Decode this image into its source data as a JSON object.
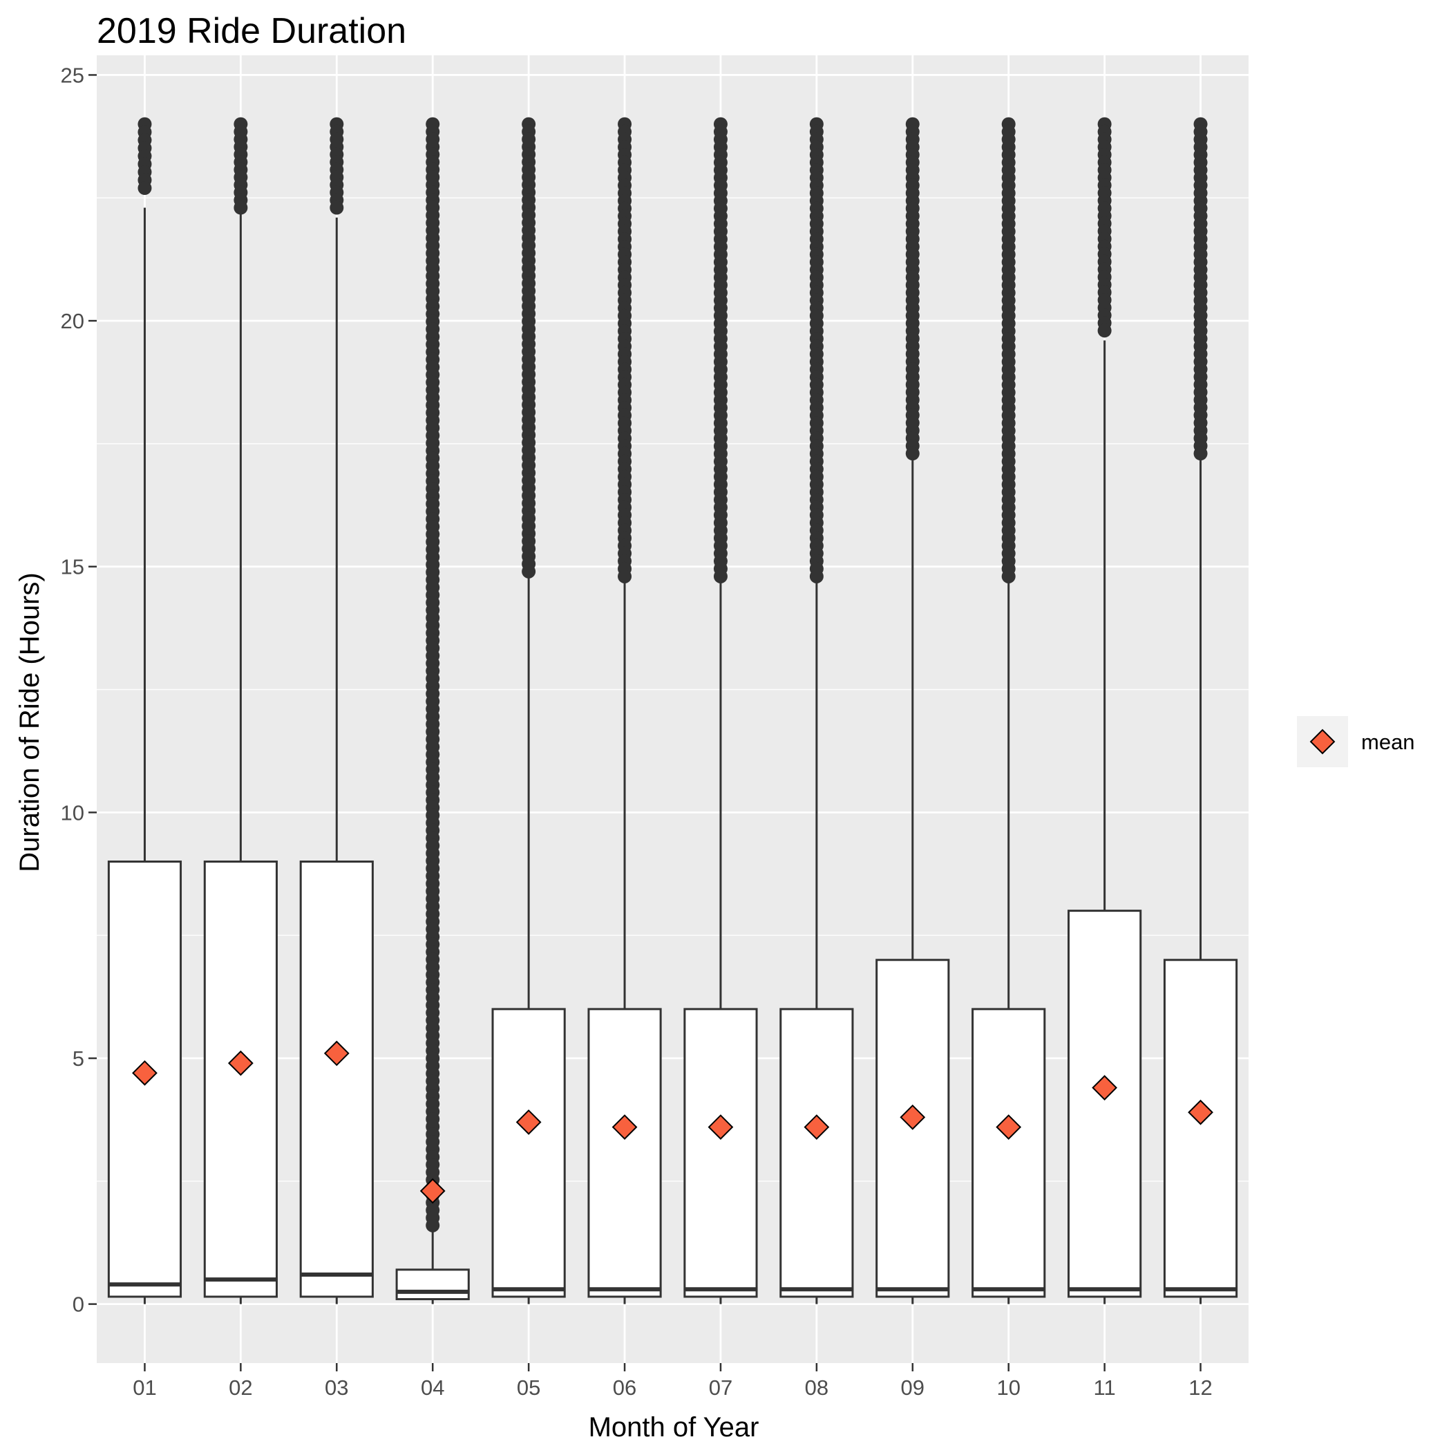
{
  "chart_data": {
    "type": "boxplot",
    "title": "2019 Ride Duration",
    "xlabel": "Month of Year",
    "ylabel": "Duration of Ride (Hours)",
    "ylim": [
      -1.2,
      25.4
    ],
    "y_ticks": [
      0,
      5,
      10,
      15,
      20,
      25
    ],
    "grid": true,
    "legend": {
      "position": "right",
      "label": "mean"
    },
    "categories": [
      "01",
      "02",
      "03",
      "04",
      "05",
      "06",
      "07",
      "08",
      "09",
      "10",
      "11",
      "12"
    ],
    "boxes": [
      {
        "month": "01",
        "q1": 0.15,
        "median": 0.4,
        "q3": 9,
        "whisker_low": 0,
        "whisker_high": 22.3,
        "mean": 4.7,
        "outlier_min": 22.7,
        "outlier_max": 24
      },
      {
        "month": "02",
        "q1": 0.15,
        "median": 0.5,
        "q3": 9,
        "whisker_low": 0,
        "whisker_high": 22.2,
        "mean": 4.9,
        "outlier_min": 22.3,
        "outlier_max": 24
      },
      {
        "month": "03",
        "q1": 0.15,
        "median": 0.6,
        "q3": 9,
        "whisker_low": 0,
        "whisker_high": 22.1,
        "mean": 5.1,
        "outlier_min": 22.3,
        "outlier_max": 24
      },
      {
        "month": "04",
        "q1": 0.1,
        "median": 0.25,
        "q3": 0.7,
        "whisker_low": 0,
        "whisker_high": 1.5,
        "mean": 2.3,
        "outlier_min": 1.6,
        "outlier_max": 24
      },
      {
        "month": "05",
        "q1": 0.15,
        "median": 0.3,
        "q3": 6,
        "whisker_low": 0,
        "whisker_high": 14.8,
        "mean": 3.7,
        "outlier_min": 14.9,
        "outlier_max": 24
      },
      {
        "month": "06",
        "q1": 0.15,
        "median": 0.3,
        "q3": 6,
        "whisker_low": 0,
        "whisker_high": 14.7,
        "mean": 3.6,
        "outlier_min": 14.8,
        "outlier_max": 24
      },
      {
        "month": "07",
        "q1": 0.15,
        "median": 0.3,
        "q3": 6,
        "whisker_low": 0,
        "whisker_high": 14.7,
        "mean": 3.6,
        "outlier_min": 14.8,
        "outlier_max": 24
      },
      {
        "month": "08",
        "q1": 0.15,
        "median": 0.3,
        "q3": 6,
        "whisker_low": 0,
        "whisker_high": 14.7,
        "mean": 3.6,
        "outlier_min": 14.8,
        "outlier_max": 24
      },
      {
        "month": "09",
        "q1": 0.15,
        "median": 0.3,
        "q3": 7,
        "whisker_low": 0,
        "whisker_high": 17.2,
        "mean": 3.8,
        "outlier_min": 17.3,
        "outlier_max": 24
      },
      {
        "month": "10",
        "q1": 0.15,
        "median": 0.3,
        "q3": 6,
        "whisker_low": 0,
        "whisker_high": 14.7,
        "mean": 3.6,
        "outlier_min": 14.8,
        "outlier_max": 24
      },
      {
        "month": "11",
        "q1": 0.15,
        "median": 0.3,
        "q3": 8,
        "whisker_low": 0,
        "whisker_high": 19.6,
        "mean": 4.4,
        "outlier_min": 19.8,
        "outlier_max": 24
      },
      {
        "month": "12",
        "q1": 0.15,
        "median": 0.3,
        "q3": 7,
        "whisker_low": 0,
        "whisker_high": 17.2,
        "mean": 3.9,
        "outlier_min": 17.3,
        "outlier_max": 24
      }
    ],
    "colors": {
      "panel_background": "#ebebeb",
      "grid": "#ffffff",
      "box_fill": "#ffffff",
      "box_line": "#333333",
      "outlier": "#333333",
      "mean_marker": "#f8613e",
      "legend_key_background": "#f2f2f2"
    }
  }
}
